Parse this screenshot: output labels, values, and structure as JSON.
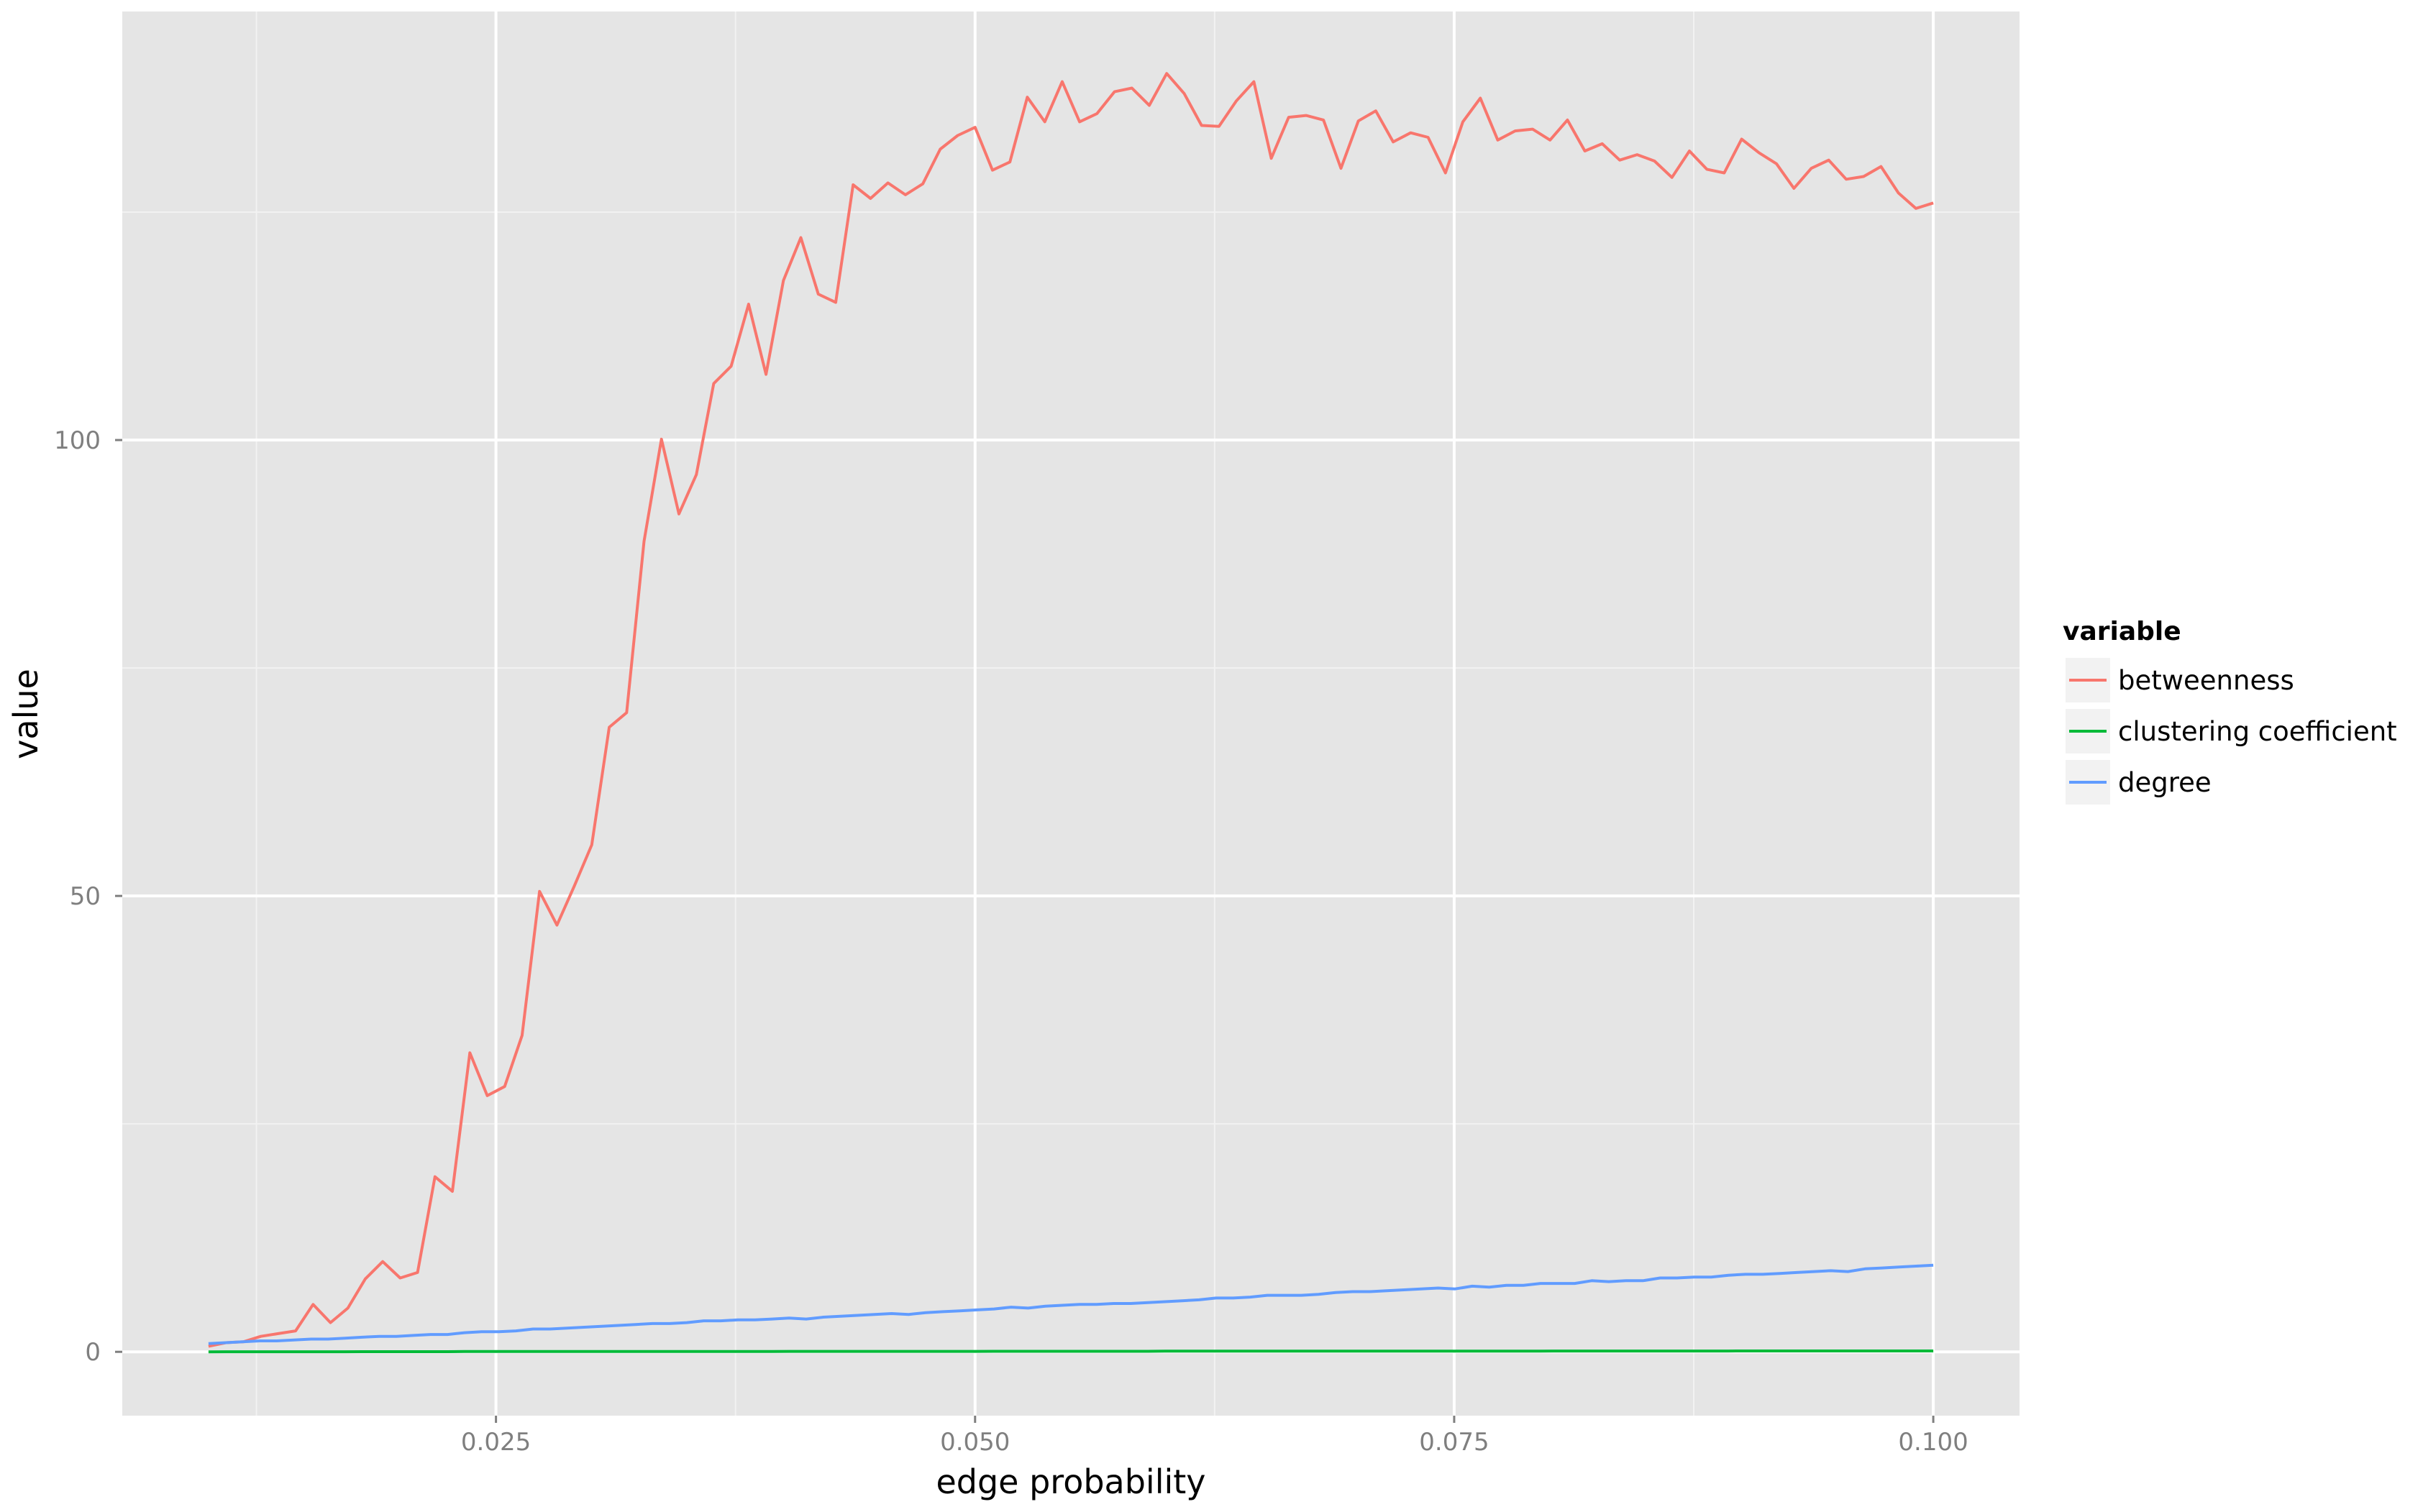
{
  "chart_data": {
    "type": "line",
    "title": "",
    "xlabel": "edge probability",
    "ylabel": "value",
    "xlim": [
      0.0055,
      0.1045
    ],
    "ylim": [
      -7,
      147
    ],
    "x_ticks": [
      0.025,
      0.05,
      0.075,
      0.1
    ],
    "x_tick_labels": [
      "0.025",
      "0.050",
      "0.075",
      "0.100"
    ],
    "y_ticks": [
      0,
      50,
      100
    ],
    "y_tick_labels": [
      "0",
      "50",
      "100"
    ],
    "grid": true,
    "legend": {
      "title": "variable",
      "position": "right"
    },
    "x_start": 0.01,
    "x_end": 0.1,
    "series": [
      {
        "name": "betweenness",
        "color": "#F8766D",
        "values": [
          0.6,
          1.0,
          1.1,
          1.7,
          2.0,
          2.3,
          5.2,
          3.2,
          4.8,
          8.0,
          9.9,
          8.1,
          8.7,
          19.2,
          17.6,
          32.8,
          28.1,
          29.1,
          34.7,
          50.5,
          46.8,
          51.1,
          55.6,
          68.5,
          70.1,
          88.9,
          100.1,
          91.9,
          96.2,
          106.2,
          108.1,
          114.9,
          107.2,
          117.5,
          122.2,
          116.0,
          115.1,
          128.0,
          126.5,
          128.2,
          126.9,
          128.1,
          131.9,
          133.4,
          134.3,
          129.6,
          130.5,
          137.6,
          134.9,
          139.3,
          134.9,
          135.8,
          138.2,
          138.6,
          136.7,
          140.2,
          138.0,
          134.5,
          134.4,
          137.2,
          139.3,
          130.9,
          135.4,
          135.6,
          135.1,
          129.8,
          135.0,
          136.1,
          132.7,
          133.7,
          133.2,
          129.3,
          134.9,
          137.5,
          132.9,
          133.9,
          134.1,
          132.9,
          135.1,
          131.7,
          132.5,
          130.7,
          131.3,
          130.6,
          128.8,
          131.7,
          129.7,
          129.3,
          133.0,
          131.5,
          130.3,
          127.6,
          129.8,
          130.7,
          128.6,
          128.9,
          130.0,
          127.1,
          125.4,
          126.0
        ]
      },
      {
        "name": "clustering coefficient",
        "color": "#00BA38",
        "values": [
          0.0,
          0.01,
          0.01,
          0.01,
          0.01,
          0.01,
          0.01,
          0.01,
          0.01,
          0.02,
          0.02,
          0.02,
          0.02,
          0.02,
          0.02,
          0.03,
          0.03,
          0.03,
          0.03,
          0.03,
          0.03,
          0.03,
          0.03,
          0.03,
          0.04,
          0.04,
          0.04,
          0.04,
          0.04,
          0.04,
          0.04,
          0.04,
          0.04,
          0.04,
          0.05,
          0.05,
          0.05,
          0.05,
          0.05,
          0.05,
          0.05,
          0.05,
          0.05,
          0.05,
          0.05,
          0.05,
          0.06,
          0.06,
          0.06,
          0.06,
          0.06,
          0.06,
          0.06,
          0.06,
          0.06,
          0.06,
          0.07,
          0.07,
          0.07,
          0.07,
          0.07,
          0.07,
          0.07,
          0.07,
          0.07,
          0.07,
          0.07,
          0.08,
          0.08,
          0.08,
          0.08,
          0.08,
          0.08,
          0.08,
          0.08,
          0.08,
          0.08,
          0.08,
          0.08,
          0.09,
          0.09,
          0.09,
          0.09,
          0.09,
          0.09,
          0.09,
          0.09,
          0.09,
          0.09,
          0.09,
          0.1,
          0.1,
          0.1,
          0.1,
          0.1,
          0.1,
          0.1,
          0.1,
          0.1,
          0.1,
          0.1,
          0.1
        ]
      },
      {
        "name": "degree",
        "color": "#619CFF",
        "values": [
          0.9,
          1.0,
          1.1,
          1.2,
          1.2,
          1.3,
          1.4,
          1.4,
          1.5,
          1.6,
          1.7,
          1.7,
          1.8,
          1.9,
          1.9,
          2.1,
          2.2,
          2.2,
          2.3,
          2.5,
          2.5,
          2.6,
          2.7,
          2.8,
          2.9,
          3.0,
          3.1,
          3.1,
          3.2,
          3.4,
          3.4,
          3.5,
          3.5,
          3.6,
          3.7,
          3.6,
          3.8,
          3.9,
          4.0,
          4.1,
          4.2,
          4.1,
          4.3,
          4.4,
          4.5,
          4.6,
          4.7,
          4.9,
          4.8,
          5.0,
          5.1,
          5.2,
          5.2,
          5.3,
          5.3,
          5.4,
          5.5,
          5.6,
          5.7,
          5.9,
          5.9,
          6.0,
          6.2,
          6.2,
          6.2,
          6.3,
          6.5,
          6.6,
          6.6,
          6.7,
          6.8,
          6.9,
          7.0,
          6.9,
          7.2,
          7.1,
          7.3,
          7.3,
          7.5,
          7.5,
          7.5,
          7.8,
          7.7,
          7.8,
          7.8,
          8.1,
          8.1,
          8.2,
          8.2,
          8.4,
          8.5,
          8.5,
          8.6,
          8.7,
          8.8,
          8.9,
          8.8,
          9.1,
          9.2,
          9.3,
          9.4,
          9.5
        ]
      }
    ]
  }
}
